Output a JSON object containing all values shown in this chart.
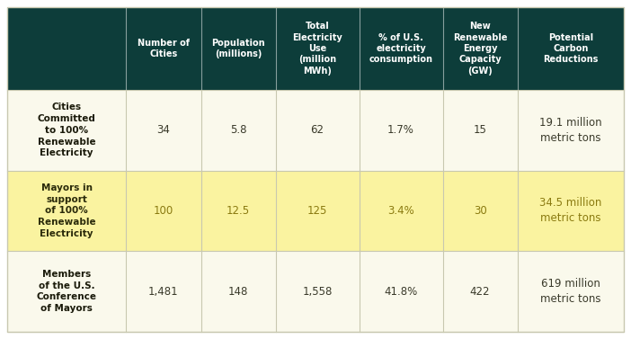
{
  "header_bg": "#0d3d3a",
  "header_text_color": "#ffffff",
  "row_bgs": [
    "#faf9ec",
    "#faf3a0",
    "#faf9ec"
  ],
  "divider_color": "#c8c8b0",
  "col_headers": [
    "Number of\nCities",
    "Population\n(millions)",
    "Total\nElectricity\nUse\n(million\nMWh)",
    "% of U.S.\nelectricity\nconsumption",
    "New\nRenewable\nEnergy\nCapacity\n(GW)",
    "Potential\nCarbon\nReductions"
  ],
  "row_labels": [
    "Cities\nCommitted\nto 100%\nRenewable\nElectricity",
    "Mayors in\nsupport\nof 100%\nRenewable\nElectricity",
    "Members\nof the U.S.\nConference\nof Mayors"
  ],
  "data": [
    [
      "34",
      "5.8",
      "62",
      "1.7%",
      "15",
      "19.1 million\nmetric tons"
    ],
    [
      "100",
      "12.5",
      "125",
      "3.4%",
      "30",
      "34.5 million\nmetric tons"
    ],
    [
      "1,481",
      "148",
      "1,558",
      "41.8%",
      "422",
      "619 million\nmetric tons"
    ]
  ],
  "col_props": [
    0.188,
    0.118,
    0.118,
    0.132,
    0.132,
    0.118,
    0.168
  ],
  "header_prop": 0.255,
  "row_props": [
    0.248,
    0.248,
    0.249
  ],
  "header_fontsize": 7.0,
  "row_label_fontsize": 7.5,
  "data_fontsize": 8.5,
  "data_color_white": "#3a3a2a",
  "data_color_yellow": "#8a7a10",
  "row_label_color_white": "#1a1a0a",
  "row_label_color_yellow": "#2a2a0a"
}
